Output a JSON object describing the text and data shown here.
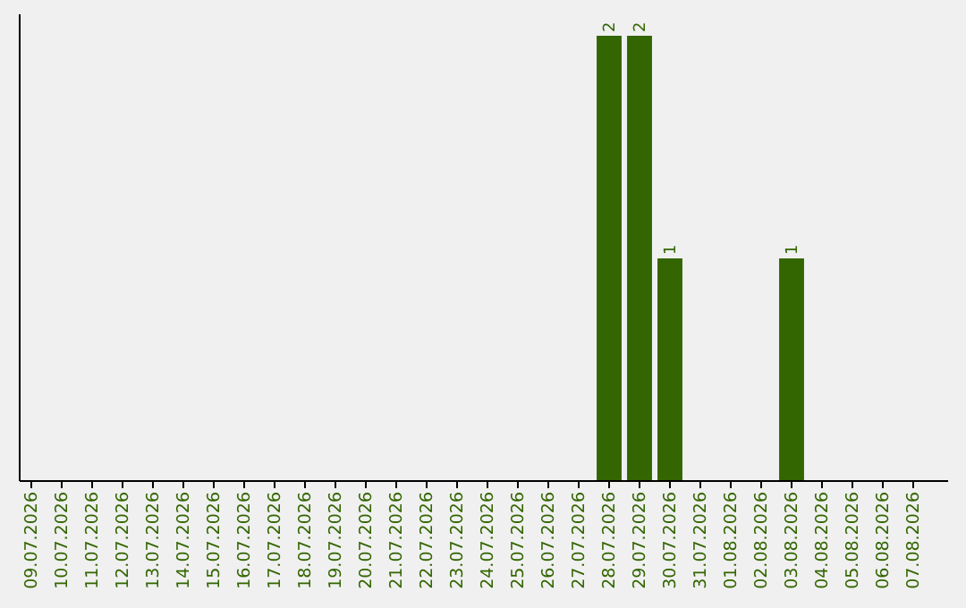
{
  "chart_data": {
    "type": "bar",
    "categories": [
      "09.07.2026",
      "10.07.2026",
      "11.07.2026",
      "12.07.2026",
      "13.07.2026",
      "14.07.2026",
      "15.07.2026",
      "16.07.2026",
      "17.07.2026",
      "18.07.2026",
      "19.07.2026",
      "20.07.2026",
      "21.07.2026",
      "22.07.2026",
      "23.07.2026",
      "24.07.2026",
      "25.07.2026",
      "26.07.2026",
      "27.07.2026",
      "28.07.2026",
      "29.07.2026",
      "30.07.2026",
      "31.07.2026",
      "01.08.2026",
      "02.08.2026",
      "03.08.2026",
      "04.08.2026",
      "05.08.2026",
      "06.08.2026",
      "07.08.2026"
    ],
    "values": [
      null,
      null,
      null,
      null,
      null,
      null,
      null,
      null,
      null,
      null,
      null,
      null,
      null,
      null,
      null,
      null,
      null,
      null,
      null,
      2,
      2,
      1,
      null,
      null,
      null,
      1,
      null,
      null,
      null,
      null
    ],
    "color": "#336600",
    "data_labels": true
  }
}
